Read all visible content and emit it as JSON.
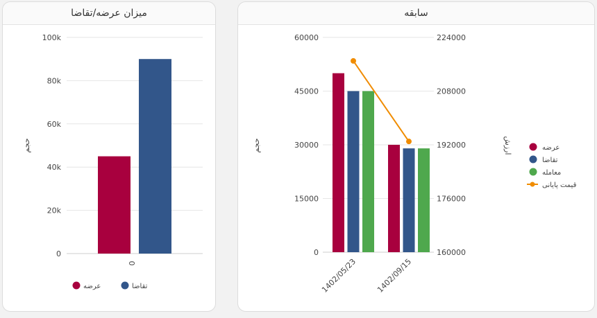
{
  "panels": {
    "supply_demand": {
      "title": "میزان عرضه/تقاضا"
    },
    "history": {
      "title": "سابقه"
    }
  },
  "chart_data": [
    {
      "type": "bar",
      "title": "میزان عرضه/تقاضا",
      "categories": [
        "0"
      ],
      "yticks": [
        "0",
        "20k",
        "40k",
        "60k",
        "80k",
        "100k"
      ],
      "ylim": [
        0,
        100000
      ],
      "ylabel": "حجم",
      "series": [
        {
          "name": "عرضه",
          "color": "#a8003e",
          "values": [
            45000
          ]
        },
        {
          "name": "تقاضا",
          "color": "#32568a",
          "values": [
            90000
          ]
        }
      ],
      "legend": "bottom"
    },
    {
      "type": "bar",
      "title": "سابقه",
      "categories": [
        "1402/05/23",
        "1402/09/15"
      ],
      "yticks_left": [
        "0",
        "15000",
        "30000",
        "45000",
        "60000"
      ],
      "ylim_left": [
        0,
        60000
      ],
      "yticks_right": [
        "160000",
        "176000",
        "192000",
        "208000",
        "224000"
      ],
      "ylim_right": [
        160000,
        224000
      ],
      "ylabel_left": "حجم",
      "ylabel_right": "ارزش",
      "series": [
        {
          "name": "عرضه",
          "color": "#a8003e",
          "values": [
            50000,
            30000
          ]
        },
        {
          "name": "تقاضا",
          "color": "#32568a",
          "values": [
            45000,
            29000
          ]
        },
        {
          "name": "معامله",
          "color": "#4fa84d",
          "values": [
            45000,
            29000
          ]
        },
        {
          "name": "قیمت پایانی",
          "type": "line",
          "axis": "right",
          "color": "#f08c00",
          "values": [
            217000,
            193000
          ]
        }
      ],
      "legend": "right"
    }
  ]
}
